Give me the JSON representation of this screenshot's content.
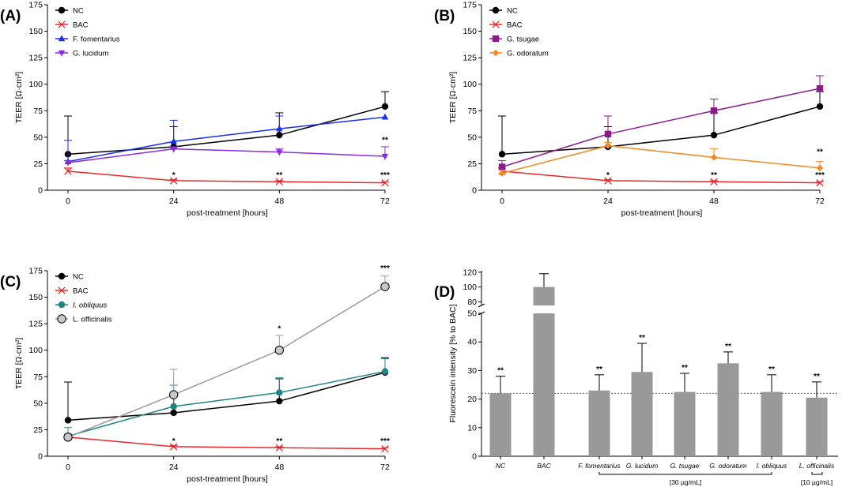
{
  "colors": {
    "NC": "#000000",
    "BAC": "#e8282b",
    "F_fomentarius": "#1a2ef0",
    "G_lucidum": "#8a2be2",
    "G_tsugae": "#8b1a8b",
    "G_odoratum": "#f5891f",
    "I_obliquus": "#1f8585",
    "L_officinalis": "#9a9a9a",
    "bar_fill": "#999999"
  },
  "chart_data": [
    {
      "id": "A",
      "panel_label": "(A)",
      "type": "line",
      "xlabel": "post-treatment [hours]",
      "ylabel": "TEER [Ω·cm²]",
      "x": [
        0,
        24,
        48,
        72
      ],
      "xticks": [
        "0",
        "24",
        "48",
        "72"
      ],
      "yticks": [
        "0",
        "25",
        "50",
        "75",
        "100",
        "125",
        "150",
        "175"
      ],
      "ylim": [
        0,
        175
      ],
      "series": [
        {
          "name": "NC",
          "key": "NC",
          "marker": "circle",
          "values": [
            34,
            41,
            52,
            79
          ],
          "errors": [
            36,
            19,
            21,
            14
          ]
        },
        {
          "name": "BAC",
          "key": "BAC",
          "marker": "x",
          "values": [
            18,
            9,
            8,
            7
          ],
          "errors": [
            3,
            1,
            1,
            1
          ]
        },
        {
          "name": "F. fomentarius",
          "key": "F_fomentarius",
          "marker": "triangle-up",
          "values": [
            27,
            46,
            58,
            69
          ],
          "errors": [
            20,
            20,
            12,
            0
          ]
        },
        {
          "name": "G. lucidum",
          "key": "G_lucidum",
          "marker": "triangle-down",
          "values": [
            26,
            39,
            36,
            32
          ],
          "errors": [
            2,
            2,
            3,
            9
          ]
        }
      ],
      "annotations": [
        {
          "x": 24,
          "y": 12,
          "text": "*"
        },
        {
          "x": 48,
          "y": 12,
          "text": "**"
        },
        {
          "x": 72,
          "y": 12,
          "text": "***"
        },
        {
          "x": 72,
          "y": 45,
          "text": "**"
        }
      ]
    },
    {
      "id": "B",
      "panel_label": "(B)",
      "type": "line",
      "xlabel": "post-treatment [hours]",
      "ylabel": "TEER [Ω·cm²]",
      "x": [
        0,
        24,
        48,
        72
      ],
      "xticks": [
        "0",
        "24",
        "48",
        "72"
      ],
      "yticks": [
        "0",
        "25",
        "50",
        "75",
        "100",
        "125",
        "150",
        "175"
      ],
      "ylim": [
        0,
        175
      ],
      "series": [
        {
          "name": "NC",
          "key": "NC",
          "marker": "circle",
          "values": [
            34,
            41,
            52,
            79
          ],
          "errors": [
            36,
            19,
            21,
            14
          ]
        },
        {
          "name": "BAC",
          "key": "BAC",
          "marker": "x",
          "values": [
            18,
            9,
            8,
            7
          ],
          "errors": [
            3,
            1,
            1,
            1
          ]
        },
        {
          "name": "G. tsugae",
          "key": "G_tsugae",
          "marker": "square",
          "values": [
            22,
            53,
            75,
            96
          ],
          "errors": [
            6,
            17,
            11,
            12
          ]
        },
        {
          "name": "G. odoratum",
          "key": "G_odoratum",
          "marker": "diamond",
          "values": [
            16,
            42,
            31,
            21
          ],
          "errors": [
            3,
            3,
            8,
            6
          ]
        }
      ],
      "annotations": [
        {
          "x": 24,
          "y": 12,
          "text": "*"
        },
        {
          "x": 48,
          "y": 12,
          "text": "**"
        },
        {
          "x": 72,
          "y": 12,
          "text": "***"
        },
        {
          "x": 72,
          "y": 34,
          "text": "**"
        }
      ]
    },
    {
      "id": "C",
      "panel_label": "(C)",
      "type": "line",
      "xlabel": "post-treatment [hours]",
      "ylabel": "TEER [Ω·cm²]",
      "x": [
        0,
        24,
        48,
        72
      ],
      "xticks": [
        "0",
        "24",
        "48",
        "72"
      ],
      "yticks": [
        "0",
        "25",
        "50",
        "75",
        "100",
        "125",
        "150",
        "175"
      ],
      "ylim": [
        0,
        175
      ],
      "series": [
        {
          "name": "NC",
          "key": "NC",
          "marker": "circle",
          "values": [
            34,
            41,
            52,
            79
          ],
          "errors": [
            36,
            19,
            21,
            14
          ]
        },
        {
          "name": "BAC",
          "key": "BAC",
          "marker": "x",
          "values": [
            18,
            9,
            8,
            7
          ],
          "errors": [
            3,
            1,
            1,
            1
          ]
        },
        {
          "name": "I. obliquus",
          "key": "I_obliquus",
          "italic": true,
          "marker": "hexagon",
          "values": [
            19,
            47,
            60,
            80
          ],
          "errors": [
            8,
            20,
            14,
            12
          ]
        },
        {
          "name": "L. officinalis",
          "key": "L_officinalis",
          "marker": "circle-open",
          "values": [
            18,
            58,
            100,
            160
          ],
          "errors": [
            3,
            24,
            14,
            10
          ]
        }
      ],
      "annotations": [
        {
          "x": 24,
          "y": 12,
          "text": "*"
        },
        {
          "x": 48,
          "y": 12,
          "text": "**"
        },
        {
          "x": 72,
          "y": 12,
          "text": "***"
        },
        {
          "x": 48,
          "y": 118,
          "text": "*"
        },
        {
          "x": 72,
          "y": 175,
          "text": "***"
        }
      ]
    },
    {
      "id": "D",
      "panel_label": "(D)",
      "type": "bar",
      "ylabel": "Fluorescein intensity [% to BAC]",
      "categories": [
        "NC",
        "BAC",
        "F. fomentarius",
        "G. lucidum",
        "G. tsugae",
        "G. odoratum",
        "I. obliquus",
        "L. officinalis"
      ],
      "values": [
        22,
        100,
        23,
        29.5,
        22.5,
        32.5,
        22.5,
        20.5
      ],
      "errors": [
        6,
        18,
        5.5,
        10,
        6.5,
        4,
        6,
        5.5
      ],
      "stars": [
        "**",
        "",
        "**",
        "**",
        "**",
        "**",
        "**",
        "**"
      ],
      "yticks_lower": [
        "0",
        "10",
        "20",
        "30",
        "40",
        "50"
      ],
      "yticks_upper": [
        "80",
        "100",
        "120"
      ],
      "ylim_lower": [
        0,
        50
      ],
      "ylim_upper": [
        75,
        122
      ],
      "reference_line": 22,
      "bracket_labels": [
        "[30 µg/mL]",
        "[10 µg/mL]"
      ]
    }
  ]
}
